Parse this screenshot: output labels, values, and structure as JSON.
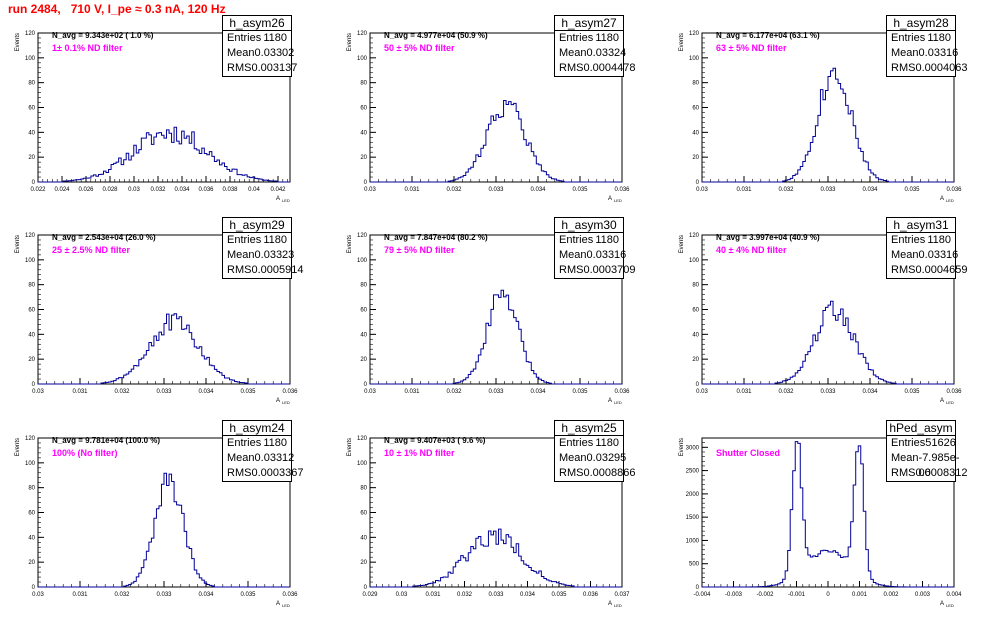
{
  "page_title": "run 2484,   710 V, I_pe ≈ 0.3 nA, 120 Hz",
  "chart_data": [
    {
      "type": "histogram",
      "name": "h_asym26",
      "xlim": [
        0.022,
        0.043
      ],
      "ylim": [
        0,
        120
      ],
      "yticks": [
        0,
        20,
        40,
        60,
        80,
        100,
        120
      ],
      "xticks": [
        0.022,
        0.024,
        0.026,
        0.028,
        0.03,
        0.032,
        0.034,
        0.036,
        0.038,
        0.04,
        0.042
      ],
      "xtick_labels": [
        "0.022",
        "0.024",
        "0.026",
        "0.028",
        "0.03",
        "0.032",
        "0.034",
        "0.036",
        "0.038",
        "0.04",
        "0.042"
      ],
      "ylabel": "Events",
      "xlabel": "A",
      "xlabel_sub": "LED",
      "n_avg": "N_avg = 9.343e+02 ( 1.0 %)",
      "filter": "1± 0.1% ND filter",
      "stats": {
        "entries": "1180",
        "mean": "0.03302",
        "rms": "0.003137"
      },
      "shape": {
        "peaks": [
          {
            "mu": 0.03302,
            "sigma": 0.0031,
            "amp": 40
          }
        ],
        "noise": 0.22,
        "seed": 11
      }
    },
    {
      "type": "histogram",
      "name": "h_asym27",
      "xlim": [
        0.03,
        0.036
      ],
      "ylim": [
        0,
        120
      ],
      "yticks": [
        0,
        20,
        40,
        60,
        80,
        100,
        120
      ],
      "xticks": [
        0.03,
        0.031,
        0.032,
        0.033,
        0.034,
        0.035,
        0.036
      ],
      "xtick_labels": [
        "0.03",
        "0.031",
        "0.032",
        "0.033",
        "0.034",
        "0.035",
        "0.036"
      ],
      "ylabel": "Events",
      "xlabel": "A",
      "xlabel_sub": "LED",
      "n_avg": "N_avg = 4.977e+04 (50.9 %)",
      "filter": "50 ± 5% ND filter",
      "stats": {
        "entries": "1180",
        "mean": "0.03324",
        "rms": "0.0004478"
      },
      "shape": {
        "peaks": [
          {
            "mu": 0.03324,
            "sigma": 0.00045,
            "amp": 63
          }
        ],
        "noise": 0.15,
        "seed": 22
      }
    },
    {
      "type": "histogram",
      "name": "h_asym28",
      "xlim": [
        0.03,
        0.036
      ],
      "ylim": [
        0,
        120
      ],
      "yticks": [
        0,
        20,
        40,
        60,
        80,
        100,
        120
      ],
      "xticks": [
        0.03,
        0.031,
        0.032,
        0.033,
        0.034,
        0.035,
        0.036
      ],
      "xtick_labels": [
        "0.03",
        "0.031",
        "0.032",
        "0.033",
        "0.034",
        "0.035",
        "0.036"
      ],
      "ylabel": "Events",
      "xlabel": "A",
      "xlabel_sub": "LED",
      "n_avg": "N_avg = 6.177e+04 (63.1 %)",
      "filter": "63 ± 5% ND filter",
      "stats": {
        "entries": "1180",
        "mean": "0.03316",
        "rms": "0.0004063"
      },
      "shape": {
        "peaks": [
          {
            "mu": 0.03316,
            "sigma": 0.0004,
            "amp": 90
          }
        ],
        "noise": 0.14,
        "seed": 33
      }
    },
    {
      "type": "histogram",
      "name": "h_asym29",
      "xlim": [
        0.03,
        0.036
      ],
      "ylim": [
        0,
        120
      ],
      "yticks": [
        0,
        20,
        40,
        60,
        80,
        100,
        120
      ],
      "xticks": [
        0.03,
        0.031,
        0.032,
        0.033,
        0.034,
        0.035,
        0.036
      ],
      "xtick_labels": [
        "0.03",
        "0.031",
        "0.032",
        "0.033",
        "0.034",
        "0.035",
        "0.036"
      ],
      "ylabel": "Events",
      "xlabel": "A",
      "xlabel_sub": "LED",
      "n_avg": "N_avg = 2.543e+04 (26.0 %)",
      "filter": "25 ± 2.5% ND filter",
      "stats": {
        "entries": "1180",
        "mean": "0.03323",
        "rms": "0.0005914"
      },
      "shape": {
        "peaks": [
          {
            "mu": 0.03323,
            "sigma": 0.00059,
            "amp": 50
          }
        ],
        "noise": 0.16,
        "seed": 44
      }
    },
    {
      "type": "histogram",
      "name": "h_asym30",
      "xlim": [
        0.03,
        0.036
      ],
      "ylim": [
        0,
        120
      ],
      "yticks": [
        0,
        20,
        40,
        60,
        80,
        100,
        120
      ],
      "xticks": [
        0.03,
        0.031,
        0.032,
        0.033,
        0.034,
        0.035,
        0.036
      ],
      "xtick_labels": [
        "0.03",
        "0.031",
        "0.032",
        "0.033",
        "0.034",
        "0.035",
        "0.036"
      ],
      "ylabel": "Events",
      "xlabel": "A",
      "xlabel_sub": "LED",
      "n_avg": "N_avg = 7.847e+04 (80.2 %)",
      "filter": "79 ± 5% ND filter",
      "stats": {
        "entries": "1180",
        "mean": "0.03316",
        "rms": "0.0003709"
      },
      "shape": {
        "peaks": [
          {
            "mu": 0.03316,
            "sigma": 0.00037,
            "amp": 72
          }
        ],
        "noise": 0.14,
        "seed": 55
      }
    },
    {
      "type": "histogram",
      "name": "h_asym31",
      "xlim": [
        0.03,
        0.036
      ],
      "ylim": [
        0,
        120
      ],
      "yticks": [
        0,
        20,
        40,
        60,
        80,
        100,
        120
      ],
      "xticks": [
        0.03,
        0.031,
        0.032,
        0.033,
        0.034,
        0.035,
        0.036
      ],
      "xtick_labels": [
        "0.03",
        "0.031",
        "0.032",
        "0.033",
        "0.034",
        "0.035",
        "0.036"
      ],
      "ylabel": "Events",
      "xlabel": "A",
      "xlabel_sub": "LED",
      "n_avg": "N_avg = 3.997e+04 (40.9 %)",
      "filter": "40 ± 4% ND filter",
      "stats": {
        "entries": "1180",
        "mean": "0.03316",
        "rms": "0.0004659"
      },
      "shape": {
        "peaks": [
          {
            "mu": 0.03316,
            "sigma": 0.00047,
            "amp": 60
          }
        ],
        "noise": 0.15,
        "seed": 66
      }
    },
    {
      "type": "histogram",
      "name": "h_asym24",
      "xlim": [
        0.03,
        0.036
      ],
      "ylim": [
        0,
        120
      ],
      "yticks": [
        0,
        20,
        40,
        60,
        80,
        100,
        120
      ],
      "xticks": [
        0.03,
        0.031,
        0.032,
        0.033,
        0.034,
        0.035,
        0.036
      ],
      "xtick_labels": [
        "0.03",
        "0.031",
        "0.032",
        "0.033",
        "0.034",
        "0.035",
        "0.036"
      ],
      "ylabel": "Events",
      "xlabel": "A",
      "xlabel_sub": "LED",
      "n_avg": "N_avg = 9.781e+04 (100.0 %)",
      "filter": "100% (No filter)",
      "stats": {
        "entries": "1180",
        "mean": "0.03312",
        "rms": "0.0003367"
      },
      "shape": {
        "peaks": [
          {
            "mu": 0.03312,
            "sigma": 0.00034,
            "amp": 85
          }
        ],
        "noise": 0.13,
        "seed": 77
      }
    },
    {
      "type": "histogram",
      "name": "h_asym25",
      "xlim": [
        0.029,
        0.037
      ],
      "ylim": [
        0,
        120
      ],
      "yticks": [
        0,
        20,
        40,
        60,
        80,
        100,
        120
      ],
      "xticks": [
        0.029,
        0.03,
        0.031,
        0.032,
        0.033,
        0.034,
        0.035,
        0.036,
        0.037
      ],
      "xtick_labels": [
        "0.029",
        "0.03",
        "0.031",
        "0.032",
        "0.033",
        "0.034",
        "0.035",
        "0.036",
        "0.037"
      ],
      "ylabel": "Events",
      "xlabel": "A",
      "xlabel_sub": "LED",
      "n_avg": "N_avg = 9.407e+03 ( 9.6 %)",
      "filter": "10 ± 1% ND filter",
      "stats": {
        "entries": "1180",
        "mean": "0.03295",
        "rms": "0.0008866"
      },
      "shape": {
        "peaks": [
          {
            "mu": 0.03295,
            "sigma": 0.00088,
            "amp": 42
          }
        ],
        "noise": 0.2,
        "seed": 88
      }
    },
    {
      "type": "histogram",
      "name": "hPed_asym",
      "xlim": [
        -0.004,
        0.004
      ],
      "ylim": [
        0,
        3200
      ],
      "yticks": [
        0,
        500,
        1000,
        1500,
        2000,
        2500,
        3000
      ],
      "xticks": [
        -0.004,
        -0.003,
        -0.002,
        -0.001,
        0,
        0.001,
        0.002,
        0.003,
        0.004
      ],
      "xtick_labels": [
        "-0.004",
        "-0.003",
        "-0.002",
        "-0.001",
        "0",
        "0.001",
        "0.002",
        "0.003",
        "0.004"
      ],
      "ylabel": "Events",
      "xlabel": "A",
      "xlabel_sub": "LED",
      "n_avg": "",
      "filter": "Shutter Closed",
      "stats": {
        "entries": "51626",
        "mean": "-7.985e-06",
        "rms": "0.0008312"
      },
      "shape": {
        "peaks": [
          {
            "mu": -0.00098,
            "sigma": 0.00015,
            "amp": 2850
          },
          {
            "mu": 0.00098,
            "sigma": 0.00015,
            "amp": 2900
          },
          {
            "mu": 0,
            "sigma": 0.0007,
            "amp": 780
          }
        ],
        "noise": 0.05,
        "seed": 99
      }
    }
  ]
}
